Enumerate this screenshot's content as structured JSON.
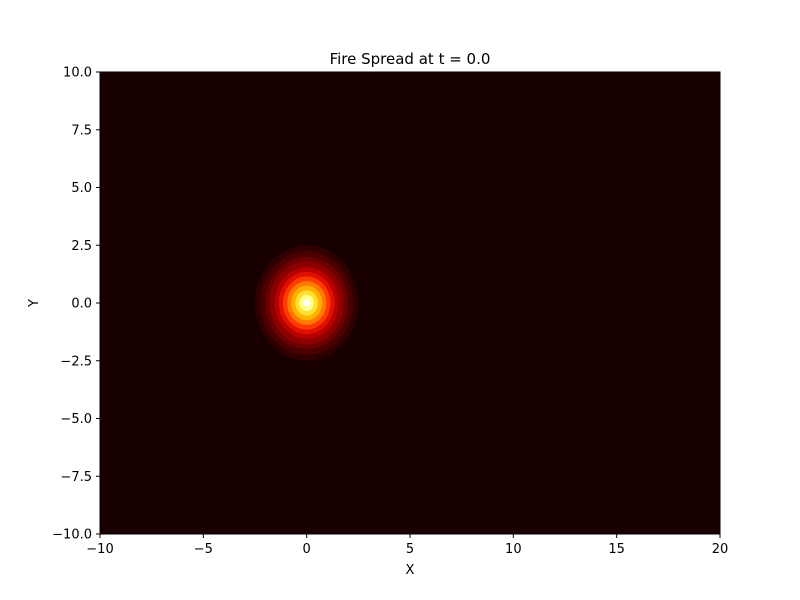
{
  "chart_data": {
    "type": "heatmap",
    "title": "Fire Spread at t = 0.0",
    "xlabel": "X",
    "ylabel": "Y",
    "xlim": [
      -10,
      20
    ],
    "ylim": [
      -10,
      10
    ],
    "x_ticks": [
      -10,
      -5,
      0,
      5,
      10,
      15,
      20
    ],
    "y_ticks": [
      -10.0,
      -7.5,
      -5.0,
      -2.5,
      0.0,
      2.5,
      5.0,
      7.5,
      10.0
    ],
    "x_tick_labels": [
      "−10",
      "−5",
      "0",
      "5",
      "10",
      "15",
      "20"
    ],
    "y_tick_labels": [
      "−10.0",
      "−7.5",
      "−5.0",
      "−2.5",
      "0.0",
      "2.5",
      "5.0",
      "7.5",
      "10.0"
    ],
    "field": {
      "kind": "gaussian",
      "center": [
        0,
        0
      ],
      "sigma": 1.0,
      "peak": 1.0,
      "background": 0.0
    },
    "contour_levels": [
      {
        "radius": 2.5,
        "color": "#2e0000"
      },
      {
        "radius": 2.25,
        "color": "#4a0000"
      },
      {
        "radius": 2.0,
        "color": "#6a0000"
      },
      {
        "radius": 1.8,
        "color": "#8c0000"
      },
      {
        "radius": 1.55,
        "color": "#b80000"
      },
      {
        "radius": 1.35,
        "color": "#e01000"
      },
      {
        "radius": 1.15,
        "color": "#ff3a00"
      },
      {
        "radius": 0.95,
        "color": "#ff7a00"
      },
      {
        "radius": 0.75,
        "color": "#ffb000"
      },
      {
        "radius": 0.55,
        "color": "#ffe030"
      },
      {
        "radius": 0.35,
        "color": "#ffff90"
      },
      {
        "radius": 0.15,
        "color": "#ffffff"
      }
    ],
    "colormap": "hot",
    "background_color": "#180000",
    "grid": false
  }
}
